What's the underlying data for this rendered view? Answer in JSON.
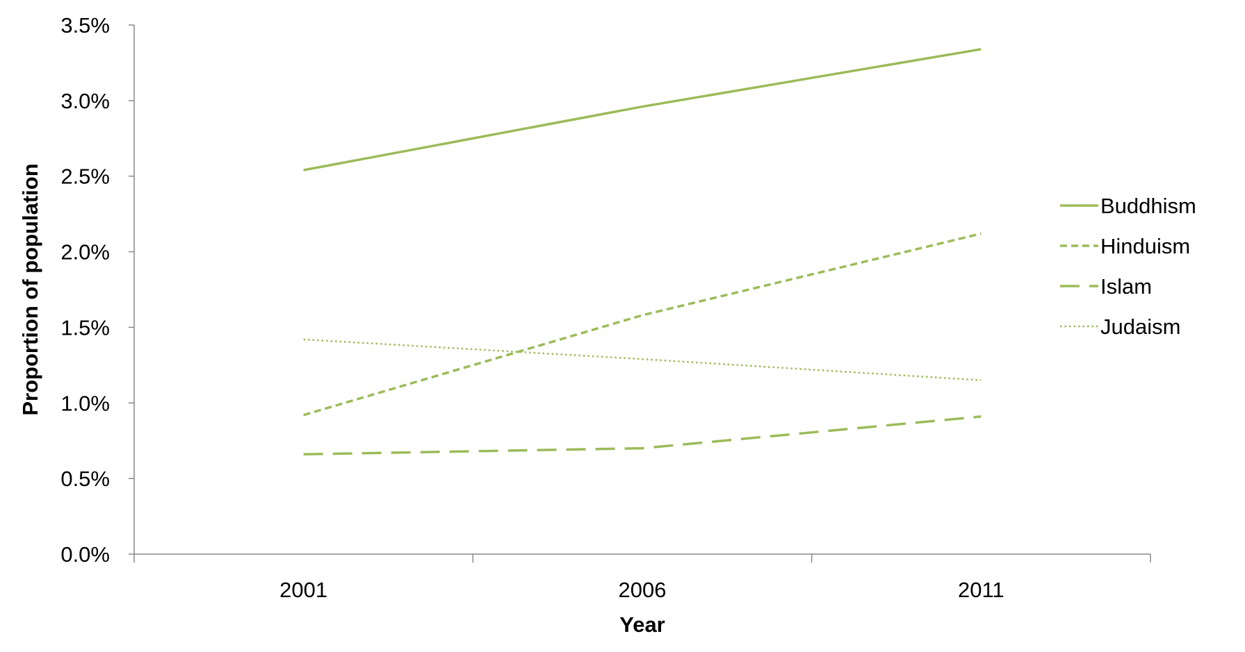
{
  "chart_data": {
    "type": "line",
    "x": [
      "2001",
      "2006",
      "2011"
    ],
    "series": [
      {
        "name": "Buddhism",
        "values": [
          2.54,
          2.96,
          3.34
        ],
        "style": "solid"
      },
      {
        "name": "Hinduism",
        "values": [
          0.92,
          1.58,
          2.12
        ],
        "style": "short-dash"
      },
      {
        "name": "Islam",
        "values": [
          0.66,
          0.7,
          0.91
        ],
        "style": "long-dash"
      },
      {
        "name": "Judaism",
        "values": [
          1.42,
          1.29,
          1.15
        ],
        "style": "dotted"
      }
    ],
    "xlabel": "Year",
    "ylabel": "Proportion of population",
    "ylim": [
      0,
      3.5
    ],
    "yticks": [
      "0.0%",
      "0.5%",
      "1.0%",
      "1.5%",
      "2.0%",
      "2.5%",
      "3.0%",
      "3.5%"
    ],
    "grid": false,
    "legend_position": "right",
    "line_color": "#9BBB59",
    "axis_color": "#888888"
  }
}
